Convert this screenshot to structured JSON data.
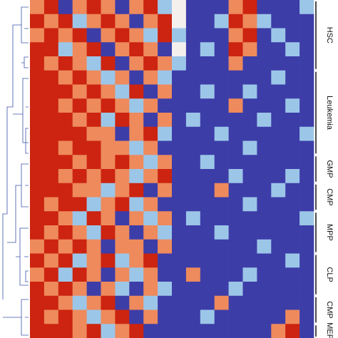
{
  "chart_data": {
    "type": "heatmap",
    "zlim": [
      -2,
      2
    ],
    "colors": [
      "#3d3da8",
      "#9cc6e8",
      "#f4f0ee",
      "#ee8a5c",
      "#cc2410"
    ],
    "groups": [
      {
        "label": "HSC",
        "rows": 5
      },
      {
        "label": "Leukemia",
        "rows": 6
      },
      {
        "label": "GMP",
        "rows": 2
      },
      {
        "label": "CMP",
        "rows": 2
      },
      {
        "label": "MPP",
        "rows": 3
      },
      {
        "label": "CLP",
        "rows": 3
      },
      {
        "label": "CMP",
        "rows": 2
      },
      {
        "label": "MEP",
        "rows": 1
      }
    ],
    "z": [
      [
        1,
        2,
        -2,
        1,
        2,
        1,
        -2,
        1,
        2,
        -1,
        0,
        -2,
        -2,
        -2,
        1,
        2,
        -2,
        -2,
        -2,
        -1
      ],
      [
        2,
        1,
        2,
        -1,
        1,
        2,
        1,
        -2,
        1,
        2,
        0,
        -2,
        -2,
        -1,
        2,
        1,
        -1,
        -2,
        -2,
        -2
      ],
      [
        1,
        2,
        1,
        2,
        -2,
        1,
        2,
        1,
        -1,
        2,
        -1,
        -2,
        -2,
        -2,
        1,
        2,
        -2,
        -1,
        -2,
        -2
      ],
      [
        2,
        2,
        -1,
        1,
        2,
        -2,
        1,
        2,
        1,
        -2,
        0,
        -2,
        -1,
        -2,
        2,
        1,
        -2,
        -2,
        -1,
        -2
      ],
      [
        2,
        1,
        2,
        1,
        -1,
        2,
        -2,
        1,
        2,
        1,
        -1,
        -2,
        -2,
        -2,
        1,
        -2,
        -2,
        -2,
        -2,
        -2
      ],
      [
        2,
        2,
        1,
        2,
        1,
        -1,
        1,
        -2,
        1,
        -1,
        -2,
        -2,
        -2,
        -2,
        -2,
        -2,
        -2,
        -1,
        -2,
        -2
      ],
      [
        2,
        2,
        2,
        1,
        2,
        1,
        -1,
        2,
        -2,
        1,
        -2,
        -2,
        -1,
        -2,
        -2,
        -1,
        -2,
        -2,
        -2,
        -2
      ],
      [
        2,
        2,
        1,
        2,
        1,
        2,
        1,
        -1,
        1,
        -2,
        -2,
        -2,
        -2,
        -2,
        1,
        -2,
        -2,
        -2,
        -1,
        -2
      ],
      [
        2,
        2,
        2,
        1,
        2,
        -1,
        2,
        1,
        -2,
        1,
        -2,
        -1,
        -2,
        -2,
        -2,
        -2,
        -1,
        -2,
        -2,
        -2
      ],
      [
        2,
        2,
        2,
        2,
        1,
        1,
        -2,
        1,
        2,
        -1,
        -2,
        -2,
        -2,
        -1,
        -2,
        -2,
        -2,
        -2,
        -2,
        -1
      ],
      [
        2,
        2,
        1,
        2,
        2,
        1,
        1,
        -1,
        1,
        -2,
        -2,
        -2,
        -2,
        -2,
        -2,
        -1,
        -2,
        -2,
        -2,
        -2
      ],
      [
        2,
        2,
        2,
        1,
        2,
        1,
        2,
        1,
        -1,
        1,
        -2,
        -2,
        -1,
        -2,
        -2,
        -2,
        -2,
        -2,
        -2,
        -2
      ],
      [
        2,
        2,
        1,
        2,
        1,
        2,
        1,
        -1,
        1,
        2,
        -2,
        -2,
        -2,
        -2,
        -1,
        -2,
        -2,
        -2,
        -1,
        -2
      ],
      [
        2,
        2,
        2,
        1,
        1,
        -1,
        1,
        2,
        -2,
        1,
        -2,
        -2,
        -2,
        1,
        -2,
        -2,
        -2,
        -1,
        -2,
        -2
      ],
      [
        2,
        1,
        2,
        2,
        -1,
        1,
        2,
        -1,
        1,
        -2,
        -2,
        -2,
        -2,
        -2,
        -2,
        -1,
        -2,
        -2,
        -2,
        -2
      ],
      [
        2,
        2,
        1,
        -1,
        2,
        1,
        -2,
        1,
        -1,
        1,
        -2,
        -1,
        -2,
        -2,
        -2,
        -2,
        -2,
        -2,
        -2,
        -1
      ],
      [
        2,
        1,
        2,
        1,
        -1,
        2,
        1,
        -2,
        1,
        -1,
        -2,
        -2,
        -2,
        -1,
        -2,
        -2,
        -2,
        -2,
        -2,
        -2
      ],
      [
        1,
        2,
        1,
        2,
        1,
        -2,
        1,
        1,
        -2,
        1,
        -2,
        -2,
        -2,
        -2,
        -2,
        -2,
        -1,
        -2,
        -2,
        -2
      ],
      [
        2,
        1,
        2,
        -1,
        1,
        2,
        -1,
        1,
        2,
        -2,
        -2,
        -2,
        -2,
        -2,
        -2,
        -2,
        -2,
        -2,
        -1,
        -2
      ],
      [
        1,
        2,
        -1,
        2,
        1,
        -2,
        1,
        -1,
        1,
        -2,
        -2,
        1,
        -2,
        -2,
        -2,
        -1,
        -2,
        -2,
        -2,
        -2
      ],
      [
        2,
        1,
        2,
        1,
        -2,
        1,
        -1,
        -2,
        1,
        -1,
        -2,
        -2,
        -2,
        -2,
        -1,
        -2,
        -2,
        -2,
        -2,
        -2
      ],
      [
        2,
        2,
        1,
        -1,
        1,
        2,
        -2,
        1,
        -1,
        -2,
        -2,
        -2,
        -2,
        1,
        -2,
        -2,
        -2,
        -2,
        -2,
        -2
      ],
      [
        2,
        1,
        2,
        1,
        -1,
        1,
        2,
        -2,
        1,
        -2,
        -2,
        -2,
        -1,
        -2,
        -2,
        -2,
        -2,
        -2,
        1,
        -2
      ],
      [
        2,
        2,
        2,
        1,
        2,
        -1,
        1,
        2,
        -2,
        -2,
        -2,
        -2,
        -2,
        -2,
        -2,
        -2,
        -2,
        1,
        2,
        -2
      ]
    ]
  }
}
